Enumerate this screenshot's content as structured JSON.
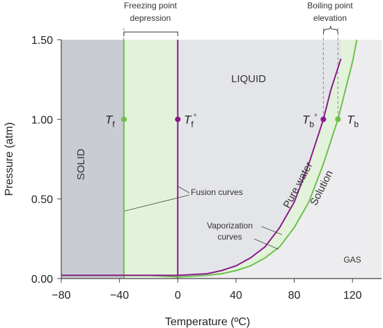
{
  "chart_data": {
    "type": "line",
    "xlabel": "Temperature (ºC)",
    "ylabel": "Pressure (atm)",
    "xlim": [
      -80,
      140
    ],
    "ylim": [
      0,
      1.5
    ],
    "x_ticks": [
      "−80",
      "−40",
      "0",
      "40",
      "80",
      "120"
    ],
    "x_tick_values": [
      -80,
      -40,
      0,
      40,
      80,
      120
    ],
    "y_ticks": [
      "0.00",
      "0.50",
      "1.00",
      "1.50"
    ],
    "y_tick_values": [
      0,
      0.5,
      1.0,
      1.5
    ],
    "regions": {
      "solid": "SOLID",
      "liquid": "LIQUID",
      "gas": "GAS"
    },
    "annotations": {
      "freezing_line1": "Freezing point",
      "freezing_line2": "depression",
      "boiling_line1": "Boiling point",
      "boiling_line2": "elevation",
      "fusion_curves": "Fusion curves",
      "vaporization_line1": "Vaporization",
      "vaporization_line2": "curves",
      "pure_water": "Pure water",
      "solution": "Solution"
    },
    "point_labels": {
      "tf": "T",
      "tf_sub": "f",
      "tf0": "T",
      "tf0_sub": "f",
      "tf0_sup": "°",
      "tb0": "T",
      "tb0_sub": "b",
      "tb0_sup": "°",
      "tb": "T",
      "tb_sub": "b"
    },
    "series": [
      {
        "name": "Pure water",
        "color": "#8b1a8b",
        "fusion_x": 0,
        "vaporization_x": [
          -80,
          -20,
          0,
          10,
          20,
          30,
          40,
          50,
          60,
          70,
          80,
          90,
          100,
          105,
          112
        ],
        "vaporization_y": [
          0.02,
          0.02,
          0.02,
          0.025,
          0.03,
          0.05,
          0.08,
          0.13,
          0.2,
          0.32,
          0.48,
          0.72,
          1.0,
          1.18,
          1.38
        ]
      },
      {
        "name": "Solution",
        "color": "#6cc04a",
        "fusion_x": -37,
        "vaporization_x": [
          -80,
          -20,
          0,
          10,
          20,
          30,
          40,
          50,
          60,
          70,
          80,
          90,
          100,
          110,
          120,
          123
        ],
        "vaporization_y": [
          0.02,
          0.02,
          0.01,
          0.015,
          0.02,
          0.03,
          0.05,
          0.08,
          0.13,
          0.2,
          0.32,
          0.48,
          0.72,
          1.0,
          1.36,
          1.5
        ]
      }
    ],
    "markers": [
      {
        "x": -37,
        "y": 1.0,
        "color": "#6cc04a"
      },
      {
        "x": 0,
        "y": 1.0,
        "color": "#8b1a8b"
      },
      {
        "x": 100,
        "y": 1.0,
        "color": "#8b1a8b"
      },
      {
        "x": 110,
        "y": 1.0,
        "color": "#6cc04a"
      }
    ],
    "colors": {
      "solid_fill": "#c9ccd3",
      "liquid_fill": "#e4e5e8",
      "gas_fill": "#ededf0",
      "band_fill": "#e3f2da",
      "axis": "#444444"
    }
  }
}
